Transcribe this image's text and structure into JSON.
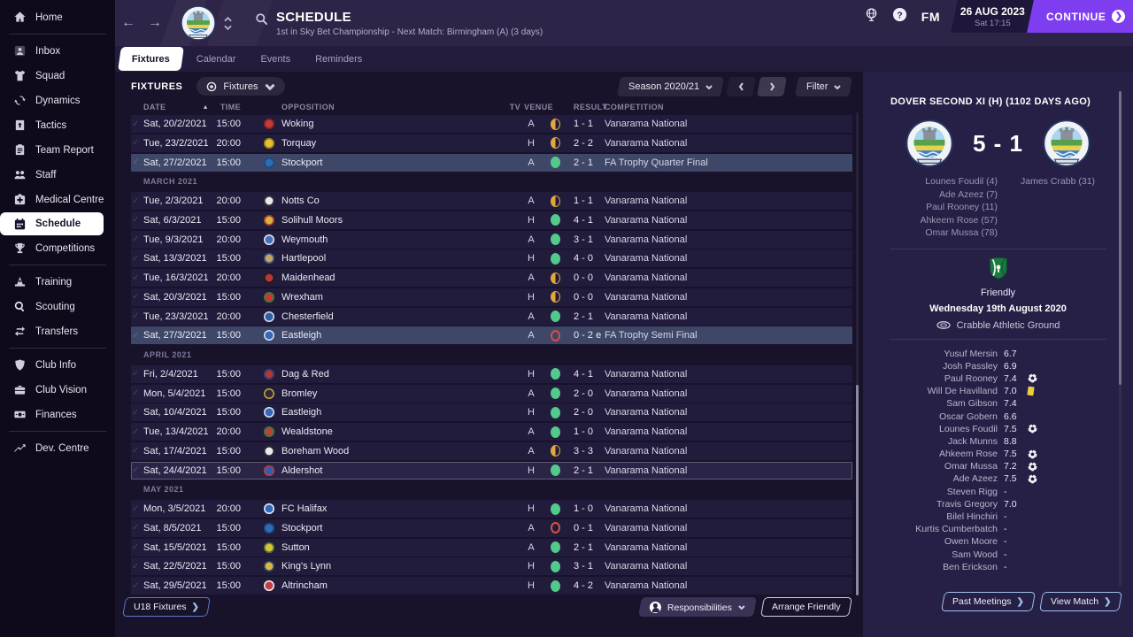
{
  "topbar": {
    "title": "SCHEDULE",
    "subtitle": "1st in Sky Bet Championship - Next Match: Birmingham (A) (3 days)",
    "fm_label": "FM",
    "date": "26 AUG 2023",
    "day_time": "Sat 17:15",
    "continue_label": "CONTINUE"
  },
  "tabs": {
    "active": 0,
    "labels": [
      "Fixtures",
      "Calendar",
      "Events",
      "Reminders"
    ]
  },
  "sidebar": {
    "groups": [
      [
        {
          "label": "Home",
          "icon": "home"
        }
      ],
      [
        {
          "label": "Inbox",
          "icon": "inbox"
        },
        {
          "label": "Squad",
          "icon": "squad"
        },
        {
          "label": "Dynamics",
          "icon": "dynamics"
        },
        {
          "label": "Tactics",
          "icon": "tactics"
        },
        {
          "label": "Team Report",
          "icon": "report"
        },
        {
          "label": "Staff",
          "icon": "staff"
        },
        {
          "label": "Medical Centre",
          "icon": "medical"
        },
        {
          "label": "Schedule",
          "icon": "schedule",
          "selected": true
        },
        {
          "label": "Competitions",
          "icon": "competitions"
        }
      ],
      [
        {
          "label": "Training",
          "icon": "training"
        },
        {
          "label": "Scouting",
          "icon": "scouting"
        },
        {
          "label": "Transfers",
          "icon": "transfers"
        }
      ],
      [
        {
          "label": "Club Info",
          "icon": "clubinfo"
        },
        {
          "label": "Club Vision",
          "icon": "vision"
        },
        {
          "label": "Finances",
          "icon": "finances"
        }
      ],
      [
        {
          "label": "Dev. Centre",
          "icon": "devcentre"
        }
      ]
    ]
  },
  "toolbar": {
    "title": "FIXTURES",
    "view_label": "Fixtures",
    "season_label": "Season 2020/21",
    "filter_label": "Filter"
  },
  "table": {
    "headers": {
      "date": "DATE",
      "time": "TIME",
      "opposition": "OPPOSITION",
      "tv": "TV",
      "venue": "VENUE",
      "result": "RESULT",
      "competition": "COMPETITION"
    },
    "sections": [
      {
        "label": "",
        "rows": [
          {
            "date": "Sat, 20/2/2021",
            "time": "15:00",
            "team": "Woking",
            "badge": [
              "#c23b3b",
              "#7a1f1f"
            ],
            "venue": "A",
            "outcome": "draw",
            "result": "1 - 1",
            "comp": "Vanarama National",
            "hl": ""
          },
          {
            "date": "Tue, 23/2/2021",
            "time": "20:00",
            "team": "Torquay",
            "badge": [
              "#e3c235",
              "#9a7d14"
            ],
            "venue": "H",
            "outcome": "draw",
            "result": "2 - 2",
            "comp": "Vanarama National",
            "hl": ""
          },
          {
            "date": "Sat, 27/2/2021",
            "time": "15:00",
            "team": "Stockport",
            "badge": [
              "#2f6cb3",
              "#124a80"
            ],
            "venue": "A",
            "outcome": "win",
            "result": "2 - 1",
            "comp": "FA Trophy Quarter Final",
            "hl": "strong"
          }
        ]
      },
      {
        "label": "MARCH 2021",
        "rows": [
          {
            "date": "Tue, 2/3/2021",
            "time": "20:00",
            "team": "Notts Co",
            "badge": [
              "#e8e8ea",
              "#24242c"
            ],
            "venue": "A",
            "outcome": "draw",
            "result": "1 - 1",
            "comp": "Vanarama National",
            "hl": ""
          },
          {
            "date": "Sat, 6/3/2021",
            "time": "15:00",
            "team": "Solihull Moors",
            "badge": [
              "#d9b33a",
              "#a03030"
            ],
            "venue": "H",
            "outcome": "win",
            "result": "4 - 1",
            "comp": "Vanarama National",
            "hl": ""
          },
          {
            "date": "Tue, 9/3/2021",
            "time": "20:00",
            "team": "Weymouth",
            "badge": [
              "#4a6fb5",
              "#dfe5f2"
            ],
            "venue": "A",
            "outcome": "win",
            "result": "3 - 1",
            "comp": "Vanarama National",
            "hl": ""
          },
          {
            "date": "Sat, 13/3/2021",
            "time": "15:00",
            "team": "Hartlepool",
            "badge": [
              "#c9a45a",
              "#2a4f8f"
            ],
            "venue": "H",
            "outcome": "win",
            "result": "4 - 0",
            "comp": "Vanarama National",
            "hl": ""
          },
          {
            "date": "Tue, 16/3/2021",
            "time": "20:00",
            "team": "Maidenhead",
            "badge": [
              "#b23a3a",
              "#161618"
            ],
            "venue": "A",
            "outcome": "draw",
            "result": "0 - 0",
            "comp": "Vanarama National",
            "hl": ""
          },
          {
            "date": "Sat, 20/3/2021",
            "time": "15:00",
            "team": "Wrexham",
            "badge": [
              "#c23b35",
              "#2e7d3a"
            ],
            "venue": "H",
            "outcome": "draw",
            "result": "0 - 0",
            "comp": "Vanarama National",
            "hl": ""
          },
          {
            "date": "Tue, 23/3/2021",
            "time": "20:00",
            "team": "Chesterfield",
            "badge": [
              "#2e5fa5",
              "#d8dce8"
            ],
            "venue": "A",
            "outcome": "win",
            "result": "2 - 1",
            "comp": "Vanarama National",
            "hl": ""
          },
          {
            "date": "Sat, 27/3/2021",
            "time": "15:00",
            "team": "Eastleigh",
            "badge": [
              "#3a66b8",
              "#cfe0f5"
            ],
            "venue": "A",
            "outcome": "loss",
            "result": "0 - 2 e",
            "comp": "FA Trophy Semi Final",
            "hl": "strong"
          }
        ]
      },
      {
        "label": "APRIL 2021",
        "rows": [
          {
            "date": "Fri, 2/4/2021",
            "time": "15:00",
            "team": "Dag & Red",
            "badge": [
              "#b33636",
              "#26406e"
            ],
            "venue": "H",
            "outcome": "win",
            "result": "4 - 1",
            "comp": "Vanarama National",
            "hl": ""
          },
          {
            "date": "Mon, 5/4/2021",
            "time": "15:00",
            "team": "Bromley",
            "badge": [
              "#2b2b33",
              "#caa53c"
            ],
            "venue": "A",
            "outcome": "win",
            "result": "2 - 0",
            "comp": "Vanarama National",
            "hl": ""
          },
          {
            "date": "Sat, 10/4/2021",
            "time": "15:00",
            "team": "Eastleigh",
            "badge": [
              "#3a66b8",
              "#cfe0f5"
            ],
            "venue": "H",
            "outcome": "win",
            "result": "2 - 0",
            "comp": "Vanarama National",
            "hl": ""
          },
          {
            "date": "Tue, 13/4/2021",
            "time": "20:00",
            "team": "Wealdstone",
            "badge": [
              "#b5443c",
              "#2e7d3a"
            ],
            "venue": "A",
            "outcome": "win",
            "result": "1 - 0",
            "comp": "Vanarama National",
            "hl": ""
          },
          {
            "date": "Sat, 17/4/2021",
            "time": "15:00",
            "team": "Boreham Wood",
            "badge": [
              "#e9e9ee",
              "#1c1c22"
            ],
            "venue": "A",
            "outcome": "draw",
            "result": "3 - 3",
            "comp": "Vanarama National",
            "hl": ""
          },
          {
            "date": "Sat, 24/4/2021",
            "time": "15:00",
            "team": "Aldershot",
            "badge": [
              "#2f5fb0",
              "#c23b3b"
            ],
            "venue": "H",
            "outcome": "win",
            "result": "2 - 1",
            "comp": "Vanarama National",
            "hl": "mild"
          }
        ]
      },
      {
        "label": "MAY 2021",
        "rows": [
          {
            "date": "Mon, 3/5/2021",
            "time": "20:00",
            "team": "FC Halifax",
            "badge": [
              "#2f6ab8",
              "#e8ecf5"
            ],
            "venue": "H",
            "outcome": "win",
            "result": "1 - 0",
            "comp": "Vanarama National",
            "hl": ""
          },
          {
            "date": "Sat, 8/5/2021",
            "time": "15:00",
            "team": "Stockport",
            "badge": [
              "#2f6cb3",
              "#124a80"
            ],
            "venue": "A",
            "outcome": "loss",
            "result": "0 - 1",
            "comp": "Vanarama National",
            "hl": ""
          },
          {
            "date": "Sat, 15/5/2021",
            "time": "15:00",
            "team": "Sutton",
            "badge": [
              "#d8c23a",
              "#3b6e3b"
            ],
            "venue": "A",
            "outcome": "win",
            "result": "2 - 1",
            "comp": "Vanarama National",
            "hl": ""
          },
          {
            "date": "Sat, 22/5/2021",
            "time": "15:00",
            "team": "King's Lynn",
            "badge": [
              "#d9b93a",
              "#26406e"
            ],
            "venue": "H",
            "outcome": "win",
            "result": "3 - 1",
            "comp": "Vanarama National",
            "hl": ""
          },
          {
            "date": "Sat, 29/5/2021",
            "time": "15:00",
            "team": "Altrincham",
            "badge": [
              "#c04048",
              "#efeff5"
            ],
            "venue": "H",
            "outcome": "win",
            "result": "4 - 2",
            "comp": "Vanarama National",
            "hl": ""
          }
        ]
      }
    ]
  },
  "footer": {
    "u18_label": "U18 Fixtures",
    "responsibilities_label": "Responsibilities",
    "arrange_label": "Arrange Friendly"
  },
  "match_panel": {
    "header": "DOVER SECOND XI (H) (1102 DAYS AGO)",
    "score": "5 - 1",
    "home_scorers": [
      "Lounes Foudil (4)",
      "Ade Azeez (7)",
      "Paul Rooney (11)",
      "Ahkeem Rose (57)",
      "Omar Mussa (78)"
    ],
    "away_scorers": [
      "James Crabb (31)"
    ],
    "competition": "Friendly",
    "date": "Wednesday 19th August 2020",
    "venue": "Crabble Athletic Ground",
    "ratings": [
      {
        "name": "Yusuf Mersin",
        "rating": "6.7",
        "icon": ""
      },
      {
        "name": "Josh Passley",
        "rating": "6.9",
        "icon": ""
      },
      {
        "name": "Paul Rooney",
        "rating": "7.4",
        "icon": "goal"
      },
      {
        "name": "Will De Havilland",
        "rating": "7.0",
        "icon": "yellow"
      },
      {
        "name": "Sam Gibson",
        "rating": "7.4",
        "icon": ""
      },
      {
        "name": "Oscar Gobern",
        "rating": "6.6",
        "icon": ""
      },
      {
        "name": "Lounes Foudil",
        "rating": "7.5",
        "icon": "goal"
      },
      {
        "name": "Jack Munns",
        "rating": "8.8",
        "icon": ""
      },
      {
        "name": "Ahkeem Rose",
        "rating": "7.5",
        "icon": "goal"
      },
      {
        "name": "Omar Mussa",
        "rating": "7.2",
        "icon": "goal"
      },
      {
        "name": "Ade Azeez",
        "rating": "7.5",
        "icon": "goal"
      },
      {
        "name": "Steven Rigg",
        "rating": "-",
        "icon": ""
      },
      {
        "name": "Travis Gregory",
        "rating": "7.0",
        "icon": ""
      },
      {
        "name": "Bilel Hinchiri",
        "rating": "-",
        "icon": ""
      },
      {
        "name": "Kurtis Cumberbatch",
        "rating": "-",
        "icon": ""
      },
      {
        "name": "Owen Moore",
        "rating": "-",
        "icon": ""
      },
      {
        "name": "Sam Wood",
        "rating": "-",
        "icon": ""
      },
      {
        "name": "Ben Erickson",
        "rating": "-",
        "icon": ""
      }
    ],
    "past_meetings_label": "Past Meetings",
    "view_match_label": "View Match"
  },
  "colors": {
    "accent": "#7e3ef0",
    "win": "#53c98b",
    "draw": "#dfa83c",
    "loss": "#d64f48"
  }
}
